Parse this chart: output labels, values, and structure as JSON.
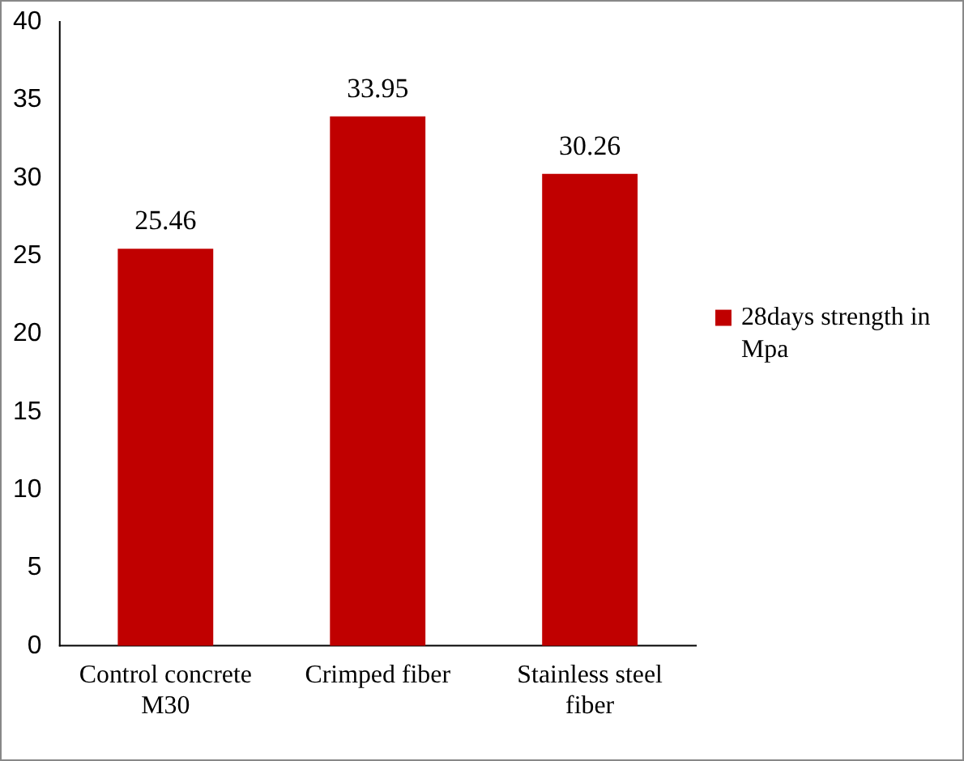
{
  "chart_data": {
    "type": "bar",
    "categories": [
      "Control concrete M30",
      "Crimped fiber",
      "Stainless steel fiber"
    ],
    "series": [
      {
        "name": "28days strength in Mpa",
        "color": "#c00000",
        "values": [
          25.46,
          33.95,
          30.26
        ]
      }
    ],
    "ylim": [
      0,
      40
    ],
    "yticks": [
      0,
      5,
      10,
      15,
      20,
      25,
      30,
      35,
      40
    ],
    "grid": false,
    "legend": "right",
    "data_labels": true
  }
}
